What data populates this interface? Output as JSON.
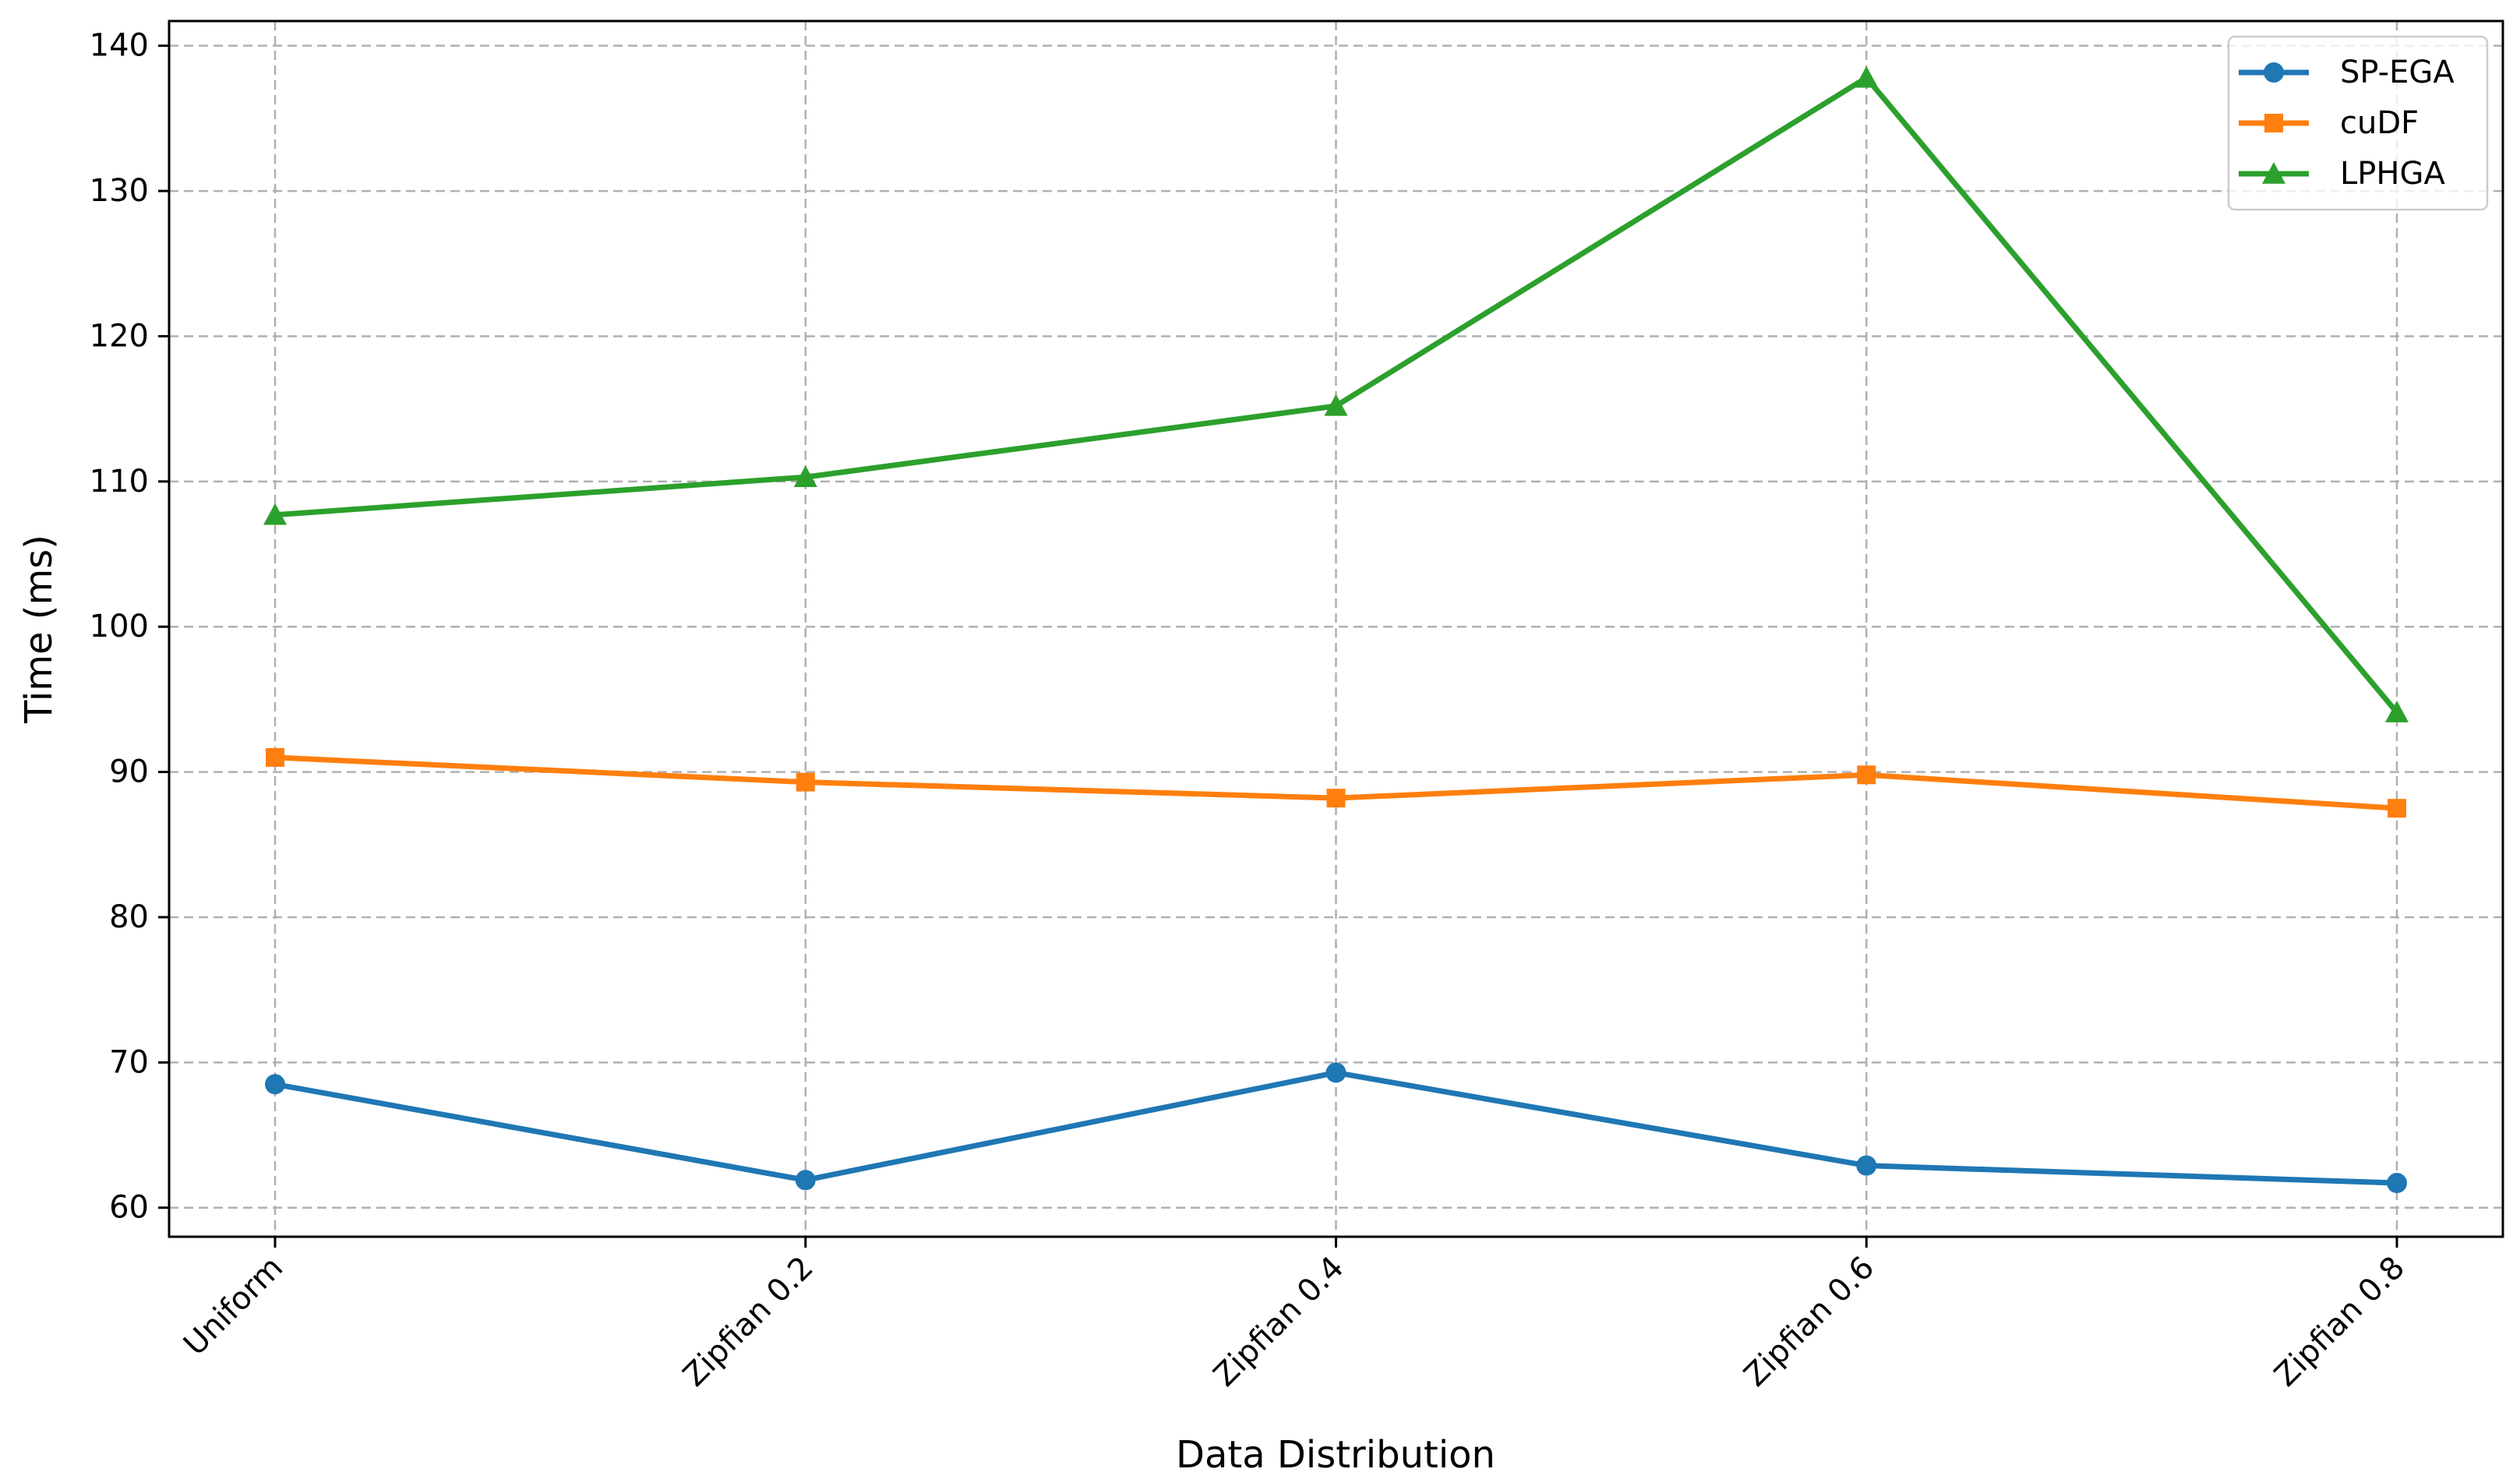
{
  "chart_data": {
    "type": "line",
    "categories": [
      "Uniform",
      "Zipfian 0.2",
      "Zipfian 0.4",
      "Zipfian 0.6",
      "Zipfian 0.8"
    ],
    "series": [
      {
        "name": "SP-EGA",
        "values": [
          68.5,
          61.9,
          69.3,
          62.9,
          61.7
        ],
        "color": "#1f77b4",
        "marker": "circle"
      },
      {
        "name": "cuDF",
        "values": [
          91.0,
          89.3,
          88.2,
          89.8,
          87.5
        ],
        "color": "#ff7f0e",
        "marker": "square"
      },
      {
        "name": "LPHGA",
        "values": [
          107.7,
          110.3,
          115.2,
          137.8,
          94.1
        ],
        "color": "#2ca02c",
        "marker": "triangle"
      }
    ],
    "xlabel": "Data Distribution",
    "ylabel": "Time (ms)",
    "ylim": [
      58,
      141.7
    ],
    "yticks": [
      60,
      70,
      80,
      90,
      100,
      110,
      120,
      130,
      140
    ],
    "grid": true,
    "legend_position": "top-right"
  }
}
